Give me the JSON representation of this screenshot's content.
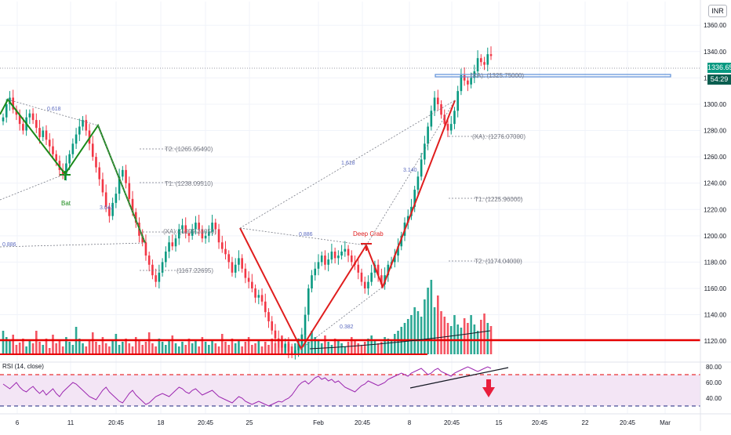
{
  "currency": "INR",
  "last_price": "1336.65",
  "countdown": "54:29",
  "chart_data": {
    "type": "candlestick",
    "y_axis_ticks": [
      "1360.00",
      "1340.00",
      "1320.00",
      "1300.00",
      "1280.00",
      "1260.00",
      "1240.00",
      "1220.00",
      "1200.00",
      "1180.00",
      "1160.00",
      "1140.00",
      "1120.00"
    ],
    "ylim": [
      1104,
      1378
    ],
    "x_axis_ticks": [
      "6",
      "11",
      "20:45",
      "18",
      "20:45",
      "25",
      "Feb",
      "20:45",
      "8",
      "20:45",
      "15",
      "20:45",
      "22",
      "20:45",
      "Mar"
    ],
    "close_series": [
      1290,
      1300,
      1305,
      1296,
      1292,
      1285,
      1280,
      1290,
      1293,
      1288,
      1282,
      1275,
      1280,
      1273,
      1268,
      1262,
      1257,
      1250,
      1246,
      1255,
      1262,
      1270,
      1277,
      1283,
      1288,
      1280,
      1270,
      1260,
      1252,
      1243,
      1233,
      1222,
      1215,
      1225,
      1232,
      1245,
      1250,
      1240,
      1228,
      1218,
      1210,
      1200,
      1195,
      1185,
      1178,
      1170,
      1165,
      1172,
      1180,
      1188,
      1195,
      1192,
      1198,
      1205,
      1208,
      1202,
      1200,
      1205,
      1210,
      1205,
      1198,
      1200,
      1203,
      1210,
      1205,
      1195,
      1190,
      1186,
      1180,
      1172,
      1178,
      1183,
      1175,
      1168,
      1165,
      1160,
      1153,
      1155,
      1150,
      1142,
      1135,
      1128,
      1122,
      1120,
      1115,
      1118,
      1112,
      1110,
      1113,
      1118,
      1125,
      1140,
      1160,
      1170,
      1175,
      1180,
      1185,
      1178,
      1182,
      1188,
      1183,
      1185,
      1188,
      1190,
      1185,
      1180,
      1178,
      1172,
      1165,
      1160,
      1165,
      1172,
      1178,
      1170,
      1163,
      1170,
      1178,
      1180,
      1185,
      1192,
      1200,
      1210,
      1215,
      1222,
      1235,
      1245,
      1258,
      1270,
      1283,
      1295,
      1305,
      1300,
      1292,
      1285,
      1280,
      1285,
      1295,
      1310,
      1322,
      1318,
      1315,
      1320,
      1325,
      1335,
      1332,
      1330,
      1338,
      1336.65
    ],
    "volume_series": [
      30,
      22,
      18,
      25,
      12,
      15,
      20,
      10,
      18,
      14,
      30,
      16,
      12,
      20,
      8,
      25,
      14,
      18,
      10,
      22,
      16,
      12,
      35,
      20,
      14,
      10,
      18,
      28,
      16,
      12,
      22,
      14,
      10,
      18,
      26,
      12,
      16,
      20,
      14,
      10,
      22,
      18,
      12,
      16,
      28,
      14,
      10,
      20,
      16,
      12,
      18,
      24,
      14,
      10,
      16,
      12,
      20,
      14,
      18,
      10,
      22,
      16,
      12,
      18,
      14,
      10,
      26,
      16,
      12,
      20,
      14,
      18,
      10,
      16,
      22,
      12,
      14,
      18,
      10,
      16,
      12,
      20,
      14,
      18,
      24,
      12,
      16,
      10,
      14,
      20,
      18,
      26,
      16,
      30,
      22,
      18,
      14,
      24,
      16,
      12,
      20,
      18,
      14,
      10,
      16,
      22,
      18,
      14,
      12,
      16,
      20,
      24,
      18,
      14,
      16,
      22,
      20,
      18,
      26,
      30,
      35,
      40,
      45,
      50,
      60,
      55,
      48,
      70,
      85,
      95,
      60,
      75,
      55,
      48,
      40,
      36,
      50,
      38,
      34,
      46,
      40,
      50,
      38,
      30,
      44,
      52,
      40,
      36
    ],
    "annotations": {
      "pattern_bat": "Bat",
      "pattern_crab": "Deep Crab",
      "ratio_0618": "0.618",
      "ratio_3041": "3.041",
      "ratio_0886_left": "0.886",
      "ratio_0886_mid": "0.886",
      "ratio_1618": "1.618",
      "ratio_3140": "3.140",
      "ratio_0382": "0.382",
      "bat_t2": "T2: (1265.95490)",
      "bat_t1": "T1: (1238.09510)",
      "bat_xa": "(XA): (1209.21050)",
      "bat_stop": "(1167.22695)",
      "crab_xa_top": "(XA): (1325.75000)",
      "crab_xa": "(XA): (1276.07000)",
      "crab_t1": "T1: (1225.96000)",
      "crab_t2": "T2: (1174.04000)"
    },
    "rsi": {
      "label": "RSI (14, close)",
      "ticks": [
        "80.00",
        "60.00",
        "40.00"
      ],
      "ylim": [
        30,
        82
      ],
      "upper_band": 70,
      "lower_band": 30,
      "series": [
        58,
        55,
        52,
        56,
        60,
        54,
        50,
        48,
        52,
        55,
        50,
        46,
        50,
        44,
        48,
        52,
        46,
        42,
        48,
        52,
        56,
        60,
        58,
        54,
        50,
        46,
        42,
        40,
        38,
        44,
        50,
        54,
        48,
        44,
        40,
        36,
        34,
        40,
        46,
        50,
        44,
        40,
        36,
        32,
        34,
        38,
        42,
        44,
        46,
        44,
        42,
        46,
        50,
        54,
        52,
        48,
        46,
        50,
        52,
        48,
        44,
        46,
        48,
        50,
        46,
        42,
        40,
        38,
        36,
        34,
        38,
        42,
        40,
        36,
        34,
        32,
        34,
        36,
        34,
        32,
        30,
        32,
        34,
        36,
        35,
        38,
        40,
        44,
        50,
        56,
        60,
        62,
        58,
        62,
        66,
        68,
        64,
        66,
        62,
        64,
        60,
        62,
        58,
        54,
        52,
        50,
        48,
        52,
        56,
        58,
        62,
        60,
        58,
        56,
        58,
        60,
        64,
        66,
        68,
        70,
        72,
        70,
        68,
        72,
        74,
        76,
        78,
        74,
        70,
        72,
        76,
        78,
        74,
        72,
        70,
        68,
        72,
        74,
        76,
        78,
        80,
        78,
        76,
        74,
        76,
        78,
        80,
        78
      ]
    },
    "colors": {
      "up": "#089981",
      "down": "#f23645",
      "bat": "#1a8a1a",
      "crab": "#e01e1e",
      "support": "#e60000",
      "resistance": "#5d8fd8",
      "rsi_line": "#9c27b0",
      "rsi_fill": "#f3e5f5",
      "arrow": "#e91e3c"
    }
  }
}
